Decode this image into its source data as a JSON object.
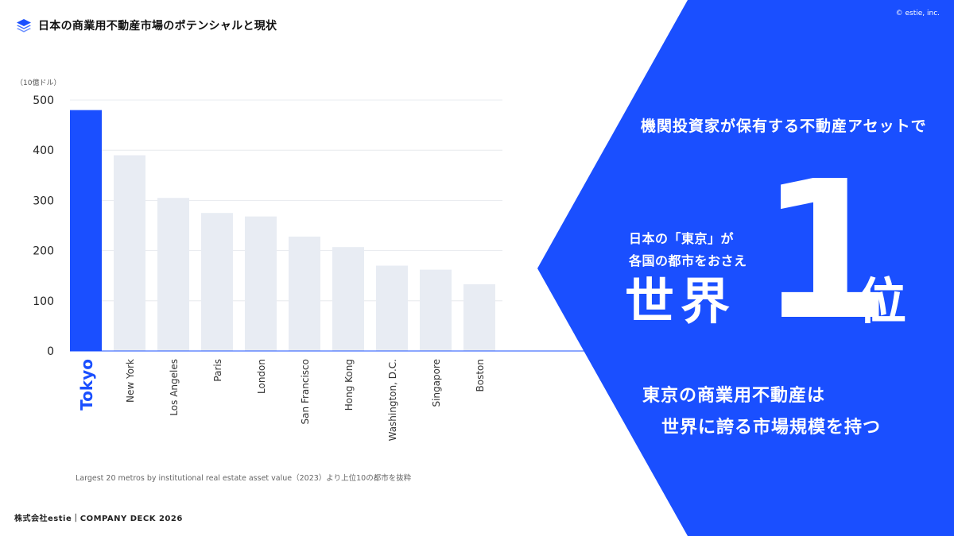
{
  "header": {
    "title": "日本の商業用不動産市場のポテンシャルと現状",
    "logo_icon": "layers-icon"
  },
  "copyright": "© estie, inc.",
  "chart_data": {
    "type": "bar",
    "unit_label": "（10億ドル）",
    "categories": [
      "Tokyo",
      "New York",
      "Los Angeles",
      "Paris",
      "London",
      "San Francisco",
      "Hong Kong",
      "Washington, D.C.",
      "Singapore",
      "Boston"
    ],
    "values": [
      480,
      390,
      305,
      275,
      268,
      228,
      207,
      170,
      162,
      133
    ],
    "ylim": [
      0,
      500
    ],
    "yticks": [
      0,
      100,
      200,
      300,
      400,
      500
    ],
    "highlight_index": 0,
    "highlight_color": "#1a4fff",
    "bar_color": "#e8ecf3",
    "grid": true
  },
  "source_note": "Largest 20 metros by institutional real estate asset value（2023）より上位10の都市を抜粋",
  "footer": "株式会社estie｜COMPANY DECK 2026",
  "callout": {
    "top": "機関投資家が保有する不動産アセットで",
    "line1": "日本の「東京」が",
    "line2": "各国の都市をおさえ",
    "world": "世界",
    "number": "1",
    "rank": "位",
    "bottom1": "東京の商業用不動産は",
    "bottom2": "世界に誇る市場規模を持つ"
  },
  "colors": {
    "accent": "#1a4fff",
    "axis": "#1a4fff",
    "grid": "#e3e6eb"
  }
}
